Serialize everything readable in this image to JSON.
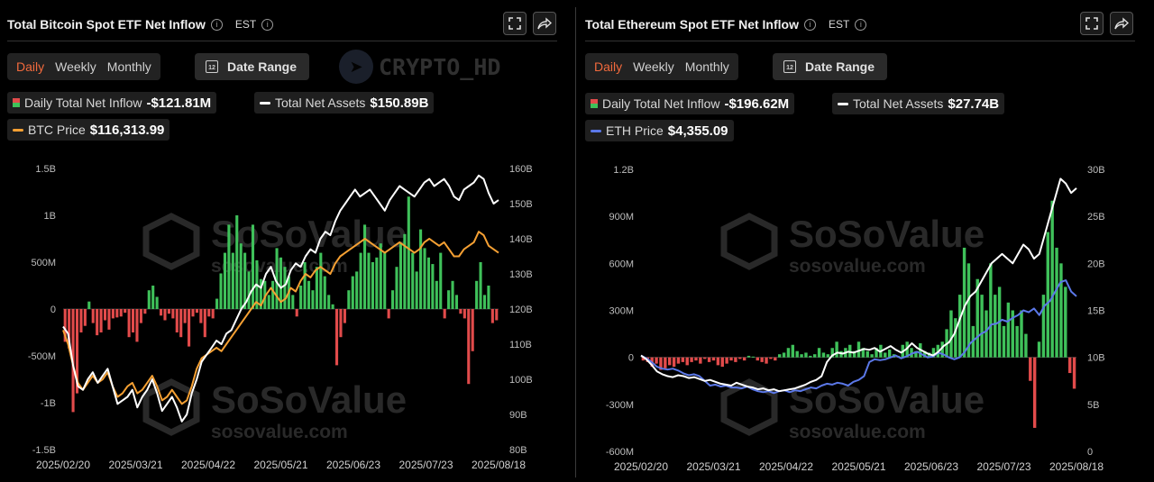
{
  "btc": {
    "title": "Total Bitcoin Spot ETF Net Inflow",
    "timezone": "EST",
    "period_tabs": [
      "Daily",
      "Weekly",
      "Monthly"
    ],
    "active_tab": "Daily",
    "date_range_label": "Date Range",
    "legend": {
      "inflow_label": "Daily Total Net Inflow",
      "inflow_value": "-$121.81M",
      "assets_label": "Total Net Assets",
      "assets_value": "$150.89B",
      "price_label": "BTC Price",
      "price_value": "$116,313.99"
    },
    "watermark_brand": "CRYPTO_HD"
  },
  "eth": {
    "title": "Total Ethereum Spot ETF Net Inflow",
    "timezone": "EST",
    "period_tabs": [
      "Daily",
      "Weekly",
      "Monthly"
    ],
    "active_tab": "Daily",
    "date_range_label": "Date Range",
    "legend": {
      "inflow_label": "Daily Total Net Inflow",
      "inflow_value": "-$196.62M",
      "assets_label": "Total Net Assets",
      "assets_value": "$27.74B",
      "price_label": "ETH Price",
      "price_value": "$4,355.09"
    }
  },
  "watermark": {
    "name": "SoSoValue",
    "url": "sosovalue.com"
  },
  "colors": {
    "positive_bar": "#3fc15a",
    "negative_bar": "#e24b4b",
    "assets_line": "#ffffff",
    "btc_price_line": "#f5a033",
    "eth_price_line": "#5b78e8",
    "active_tab": "#f26a3d"
  },
  "chart_data": [
    {
      "type": "bar+line",
      "title": "Total Bitcoin Spot ETF Net Inflow",
      "x_ticks": [
        "2025/02/20",
        "2025/03/21",
        "2025/04/22",
        "2025/05/21",
        "2025/06/23",
        "2025/07/23",
        "2025/08/18"
      ],
      "left_axis": {
        "ticks": [
          "1.5B",
          "1B",
          "500M",
          "0",
          "-500M",
          "-1B",
          "-1.5B"
        ],
        "ylim": [
          -1500,
          1500
        ],
        "unit": "M"
      },
      "right_axis": {
        "ticks": [
          "160B",
          "150B",
          "140B",
          "130B",
          "120B",
          "110B",
          "100B",
          "90B",
          "80B"
        ],
        "ylim": [
          80,
          160
        ],
        "unit": "B"
      },
      "series": [
        {
          "name": "Daily Total Net Inflow",
          "kind": "bar",
          "unit": "M",
          "values": [
            -350,
            -420,
            -1100,
            -900,
            -250,
            -180,
            80,
            -150,
            -280,
            -250,
            -120,
            -220,
            -100,
            -90,
            -80,
            -40,
            -300,
            -250,
            -350,
            -150,
            -50,
            200,
            250,
            130,
            -70,
            -120,
            -50,
            -100,
            -250,
            -300,
            -150,
            -400,
            -80,
            -40,
            -150,
            -300,
            -80,
            -100,
            110,
            380,
            600,
            900,
            600,
            1000,
            700,
            600,
            400,
            900,
            520,
            320,
            300,
            150,
            300,
            650,
            550,
            450,
            350,
            150,
            -80,
            250,
            500,
            300,
            200,
            450,
            600,
            350,
            150,
            50,
            -600,
            -300,
            -150,
            200,
            350,
            400,
            600,
            900,
            600,
            500,
            550,
            700,
            600,
            -100,
            200,
            450,
            700,
            800,
            1200,
            600,
            400,
            850,
            650,
            550,
            480,
            300,
            600,
            -100,
            200,
            300,
            150,
            -50,
            -100,
            -800,
            -450,
            300,
            500,
            150,
            250,
            -150,
            -120
          ]
        },
        {
          "name": "Total Net Assets",
          "kind": "line",
          "unit": "B",
          "values": [
            115,
            113,
            104,
            98,
            97,
            100,
            102,
            99,
            101,
            103,
            98,
            93,
            94,
            95,
            97,
            92,
            95,
            97,
            100,
            96,
            91,
            93,
            95,
            92,
            88,
            90,
            96,
            100,
            105,
            107,
            109,
            111,
            110,
            113,
            114,
            117,
            120,
            122,
            125,
            127,
            126,
            130,
            132,
            128,
            126,
            127,
            131,
            133,
            132,
            135,
            137,
            136,
            140,
            142,
            141,
            145,
            148,
            150,
            152,
            154,
            152,
            153,
            154,
            152,
            150,
            148,
            151,
            153,
            155,
            154,
            153,
            152,
            154,
            156,
            157,
            155,
            156,
            157,
            155,
            152,
            151,
            154,
            155,
            156,
            158,
            157,
            153,
            150,
            151
          ]
        },
        {
          "name": "BTC Price",
          "kind": "line",
          "unit": "B-scale",
          "values": [
            114,
            110,
            104,
            99,
            97,
            99,
            101,
            99,
            100,
            102,
            98,
            95,
            96,
            98,
            99,
            96,
            97,
            99,
            101,
            98,
            94,
            95,
            97,
            95,
            93,
            94,
            98,
            103,
            106,
            107,
            108,
            109,
            108,
            110,
            112,
            114,
            116,
            118,
            120,
            122,
            121,
            124,
            126,
            124,
            122,
            123,
            126,
            125,
            128,
            130,
            129,
            131,
            132,
            131,
            130,
            133,
            135,
            136,
            137,
            138,
            139,
            140,
            139,
            138,
            137,
            136,
            137,
            138,
            139,
            138,
            137,
            136,
            137,
            139,
            140,
            139,
            138,
            139,
            137,
            135,
            135,
            137,
            138,
            139,
            142,
            141,
            138,
            137,
            136
          ]
        }
      ]
    },
    {
      "type": "bar+line",
      "title": "Total Ethereum Spot ETF Net Inflow",
      "x_ticks": [
        "2025/02/20",
        "2025/03/21",
        "2025/04/22",
        "2025/05/21",
        "2025/06/23",
        "2025/07/23",
        "2025/08/18"
      ],
      "left_axis": {
        "ticks": [
          "1.2B",
          "900M",
          "600M",
          "300M",
          "0",
          "-300M",
          "-600M"
        ],
        "ylim": [
          -600,
          1200
        ],
        "unit": "M"
      },
      "right_axis": {
        "ticks": [
          "30B",
          "25B",
          "20B",
          "15B",
          "10B",
          "5B",
          "0"
        ],
        "ylim": [
          0,
          30
        ],
        "unit": "B"
      },
      "series": [
        {
          "name": "Daily Total Net Inflow",
          "kind": "bar",
          "unit": "M",
          "values": [
            -20,
            -30,
            -60,
            -40,
            -80,
            -70,
            -50,
            -60,
            -40,
            -30,
            -50,
            -30,
            -20,
            -40,
            -10,
            -30,
            -20,
            -50,
            -60,
            -40,
            -20,
            -30,
            -10,
            -20,
            10,
            5,
            -20,
            -30,
            -40,
            -10,
            -20,
            20,
            30,
            60,
            80,
            40,
            20,
            30,
            10,
            20,
            60,
            30,
            20,
            60,
            100,
            40,
            60,
            80,
            40,
            100,
            60,
            40,
            20,
            60,
            80,
            30,
            50,
            20,
            10,
            80,
            100,
            60,
            40,
            90,
            40,
            30,
            60,
            80,
            100,
            180,
            300,
            250,
            400,
            700,
            600,
            200,
            500,
            400,
            300,
            600,
            400,
            450,
            200,
            350,
            300,
            200,
            300,
            150,
            -150,
            -450,
            100,
            400,
            800,
            1000,
            700,
            600,
            450,
            -100,
            -200
          ]
        },
        {
          "name": "Total Net Assets",
          "kind": "line",
          "unit": "B",
          "values": [
            10.2,
            9.8,
            9.2,
            8.5,
            8.2,
            8.0,
            7.9,
            8.1,
            8.0,
            7.8,
            7.9,
            7.7,
            7.5,
            7.6,
            7.4,
            7.2,
            7.1,
            7.0,
            7.3,
            7.1,
            6.9,
            6.8,
            6.6,
            6.7,
            6.5,
            6.6,
            6.4,
            6.5,
            6.6,
            6.7,
            6.9,
            7.1,
            7.4,
            7.6,
            8.0,
            9.5,
            10.2,
            10.5,
            10.4,
            10.6,
            10.5,
            10.7,
            10.9,
            10.8,
            11.0,
            10.6,
            10.9,
            11.2,
            10.8,
            10.5,
            10.9,
            11.5,
            11.0,
            10.7,
            10.4,
            10.2,
            10.6,
            11.2,
            11.6,
            12.5,
            14.0,
            15.5,
            16.5,
            17.0,
            18.0,
            19.0,
            20.0,
            20.5,
            21.0,
            20.5,
            20.0,
            21.0,
            22.0,
            21.5,
            20.5,
            21.0,
            23.0,
            25.0,
            27.0,
            29.0,
            28.5,
            27.5,
            28.0
          ]
        },
        {
          "name": "ETH Price",
          "kind": "line",
          "unit": "B-scale",
          "values": [
            10.2,
            9.9,
            9.5,
            9.0,
            8.8,
            8.7,
            8.8,
            8.6,
            8.3,
            8.1,
            8.2,
            8.0,
            7.5,
            7.0,
            7.1,
            6.9,
            7.0,
            6.8,
            6.8,
            6.7,
            6.9,
            6.6,
            6.4,
            6.3,
            6.4,
            6.2,
            6.4,
            6.5,
            6.3,
            6.5,
            6.4,
            6.6,
            6.8,
            6.7,
            7.0,
            7.2,
            7.1,
            7.3,
            7.2,
            7.0,
            7.4,
            7.6,
            8.0,
            9.5,
            9.8,
            9.7,
            9.8,
            10.0,
            10.2,
            9.9,
            10.1,
            10.4,
            10.6,
            10.3,
            10.0,
            10.1,
            10.5,
            10.3,
            10.0,
            9.8,
            10.0,
            10.6,
            11.5,
            12.0,
            12.5,
            12.8,
            13.5,
            13.6,
            14.0,
            13.8,
            14.2,
            14.5,
            15.0,
            14.8,
            15.2,
            14.5,
            15.5,
            16.0,
            17.0,
            18.0,
            18.2,
            17.0,
            16.5
          ]
        }
      ]
    }
  ]
}
